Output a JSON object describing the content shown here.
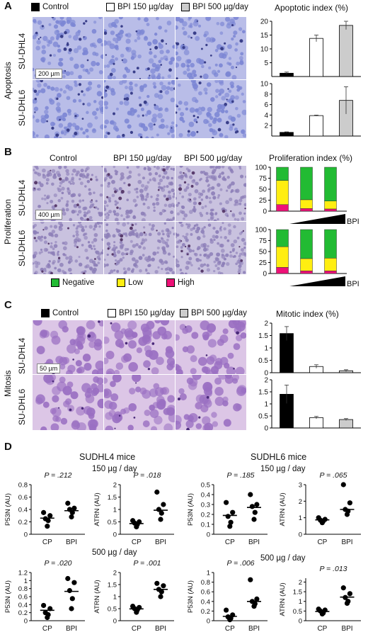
{
  "panelA": {
    "letter": "A",
    "side_label": "Apoptosis",
    "legend": [
      "Control",
      "BPI 150 µg/day",
      "BPI 500 µg/day"
    ],
    "rows": [
      "SU-DHL4",
      "SU-DHL6"
    ],
    "scale_bar": "200 µm",
    "chart_title": "Apoptotic index (%)",
    "chart_data": [
      {
        "type": "bar",
        "categories": [
          "Control",
          "BPI 150 µg/day",
          "BPI 500 µg/day"
        ],
        "values": [
          1.2,
          13.8,
          18.5
        ],
        "errors": [
          0.4,
          1.2,
          1.5
        ],
        "ylim": [
          0,
          20
        ],
        "yticks": [
          5,
          10,
          15,
          20
        ],
        "colors": [
          "#000000",
          "#ffffff",
          "#cccccc"
        ]
      },
      {
        "type": "bar",
        "categories": [
          "Control",
          "BPI 150 µg/day",
          "BPI 500 µg/day"
        ],
        "values": [
          0.7,
          3.9,
          6.8
        ],
        "errors": [
          0.1,
          0.1,
          2.6
        ],
        "ylim": [
          0,
          10
        ],
        "yticks": [
          2,
          4,
          6,
          8,
          10
        ],
        "colors": [
          "#000000",
          "#ffffff",
          "#cccccc"
        ]
      }
    ]
  },
  "panelB": {
    "letter": "B",
    "side_label": "Proliferation",
    "col_titles": [
      "Control",
      "BPI 150 µg/day",
      "BPI 500 µg/day"
    ],
    "rows": [
      "SU-DHL4",
      "SU-DHL6"
    ],
    "scale_bar": "400 µm",
    "chart_title": "Proliferation index (%)",
    "legend": [
      "Negative",
      "Low",
      "High"
    ],
    "bpi_label": "BPI",
    "colors": {
      "negative": "#22bb33",
      "low": "#ffee11",
      "high": "#ee1177"
    },
    "chart_data": [
      {
        "type": "bar",
        "stacked": true,
        "categories": [
          "Control",
          "BPI 150 µg/day",
          "BPI 500 µg/day"
        ],
        "series": [
          {
            "name": "High",
            "values": [
              15,
              6,
              5
            ]
          },
          {
            "name": "Low",
            "values": [
              55,
              20,
              18
            ]
          },
          {
            "name": "Negative",
            "values": [
              30,
              74,
              77
            ]
          }
        ],
        "ylim": [
          0,
          100
        ],
        "yticks": [
          0,
          25,
          50,
          75,
          100
        ]
      },
      {
        "type": "bar",
        "stacked": true,
        "categories": [
          "Control",
          "BPI 150 µg/day",
          "BPI 500 µg/day"
        ],
        "series": [
          {
            "name": "High",
            "values": [
              14,
              6,
              6
            ]
          },
          {
            "name": "Low",
            "values": [
              47,
              28,
              29
            ]
          },
          {
            "name": "Negative",
            "values": [
              39,
              66,
              65
            ]
          }
        ],
        "ylim": [
          0,
          100
        ],
        "yticks": [
          0,
          25,
          50,
          75,
          100
        ]
      }
    ]
  },
  "panelC": {
    "letter": "C",
    "side_label": "Mitosis",
    "legend": [
      "Control",
      "BPI 150 µg/day",
      "BPI 500 µg/day"
    ],
    "rows": [
      "SU-DHL4",
      "SU-DHL6"
    ],
    "scale_bar": "50 µm",
    "chart_title": "Mitotic index (%)",
    "chart_data": [
      {
        "type": "bar",
        "categories": [
          "Control",
          "BPI 150 µg/day",
          "BPI 500 µg/day"
        ],
        "values": [
          1.58,
          0.25,
          0.08
        ],
        "errors": [
          0.28,
          0.07,
          0.04
        ],
        "ylim": [
          0,
          2
        ],
        "yticks": [
          0,
          0.5,
          1,
          1.5,
          2
        ],
        "colors": [
          "#000000",
          "#ffffff",
          "#cccccc"
        ]
      },
      {
        "type": "bar",
        "categories": [
          "Control",
          "BPI 150 µg/day",
          "BPI 500 µg/day"
        ],
        "values": [
          1.4,
          0.43,
          0.35
        ],
        "errors": [
          0.38,
          0.05,
          0.04
        ],
        "ylim": [
          0,
          2
        ],
        "yticks": [
          0,
          0.5,
          1,
          1.5,
          2
        ],
        "colors": [
          "#000000",
          "#ffffff",
          "#cccccc"
        ]
      }
    ]
  },
  "panelD": {
    "letter": "D",
    "group_titles": [
      "SUDHL4 mice",
      "SUDHL6 mice"
    ],
    "dose_titles": [
      "150 µg / day",
      "500 µg / day"
    ],
    "chart_data": [
      {
        "type": "scatter",
        "ylabel": "P53N (AU)",
        "p": "P = .212",
        "categories": [
          "CP",
          "BPI"
        ],
        "ylim": [
          0,
          0.8
        ],
        "yticks": [
          0,
          0.2,
          0.4,
          0.6,
          0.8
        ],
        "groups": [
          [
            0.13,
            0.22,
            0.25,
            0.3,
            0.35
          ],
          [
            0.28,
            0.35,
            0.4,
            0.42,
            0.5
          ]
        ],
        "means": [
          0.26,
          0.38
        ]
      },
      {
        "type": "scatter",
        "ylabel": "ATRN (AU)",
        "p": "P = .018",
        "categories": [
          "CP",
          "BPI"
        ],
        "ylim": [
          0,
          2
        ],
        "yticks": [
          0,
          0.5,
          1,
          1.5,
          2
        ],
        "groups": [
          [
            0.3,
            0.4,
            0.45,
            0.5,
            0.55
          ],
          [
            0.6,
            0.85,
            1.0,
            1.2,
            1.7
          ]
        ],
        "means": [
          0.43,
          0.97
        ]
      },
      {
        "type": "scatter",
        "ylabel": "P53N (AU)",
        "p": "P = .185",
        "categories": [
          "CP",
          "BPI"
        ],
        "ylim": [
          0,
          0.5
        ],
        "yticks": [
          0,
          0.1,
          0.2,
          0.3,
          0.4,
          0.5
        ],
        "groups": [
          [
            0.08,
            0.12,
            0.18,
            0.22,
            0.32
          ],
          [
            0.15,
            0.22,
            0.28,
            0.3,
            0.4
          ]
        ],
        "means": [
          0.19,
          0.27
        ]
      },
      {
        "type": "scatter",
        "ylabel": "ATRN (AU)",
        "p": "P = .065",
        "categories": [
          "CP",
          "BPI"
        ],
        "ylim": [
          0,
          3
        ],
        "yticks": [
          0,
          1,
          2,
          3
        ],
        "groups": [
          [
            0.7,
            0.8,
            0.85,
            0.9,
            1.0
          ],
          [
            1.2,
            1.4,
            1.5,
            1.9,
            3.0
          ]
        ],
        "means": [
          0.87,
          1.5
        ]
      },
      {
        "type": "scatter",
        "ylabel": "P53N (AU)",
        "p": "P = .020",
        "categories": [
          "CP",
          "BPI"
        ],
        "ylim": [
          0,
          1.2
        ],
        "yticks": [
          0,
          0.2,
          0.4,
          0.6,
          0.8,
          1,
          1.2
        ],
        "groups": [
          [
            0.08,
            0.15,
            0.2,
            0.3,
            0.38
          ],
          [
            0.3,
            0.55,
            0.75,
            0.95,
            1.05
          ]
        ],
        "means": [
          0.26,
          0.73
        ]
      },
      {
        "type": "scatter",
        "ylabel": "ATRN (AU)",
        "p": "P = .001",
        "categories": [
          "CP",
          "BPI"
        ],
        "ylim": [
          0,
          2
        ],
        "yticks": [
          0,
          0.5,
          1,
          1.5,
          2
        ],
        "groups": [
          [
            0.35,
            0.45,
            0.5,
            0.55,
            0.6
          ],
          [
            1.0,
            1.2,
            1.3,
            1.45,
            1.55
          ]
        ],
        "means": [
          0.49,
          1.3
        ]
      },
      {
        "type": "scatter",
        "ylabel": "P53N (AU)",
        "p": "P = .006",
        "categories": [
          "CP",
          "BPI"
        ],
        "ylim": [
          0,
          1
        ],
        "yticks": [
          0,
          0.2,
          0.4,
          0.6,
          0.8,
          1
        ],
        "groups": [
          [
            0.02,
            0.05,
            0.08,
            0.12,
            0.22
          ],
          [
            0.3,
            0.35,
            0.4,
            0.45,
            0.85
          ]
        ],
        "means": [
          0.09,
          0.4
        ]
      },
      {
        "type": "scatter",
        "ylabel": "ATRN (AU)",
        "p": "P = .013",
        "categories": [
          "CP",
          "BPI"
        ],
        "ylim": [
          0,
          2.2
        ],
        "yticks": [
          0,
          0.5,
          1,
          1.5,
          2
        ],
        "groups": [
          [
            0.35,
            0.4,
            0.5,
            0.55,
            0.6
          ],
          [
            0.9,
            1.0,
            1.2,
            1.4,
            1.7
          ]
        ],
        "means": [
          0.48,
          1.22
        ]
      }
    ]
  }
}
